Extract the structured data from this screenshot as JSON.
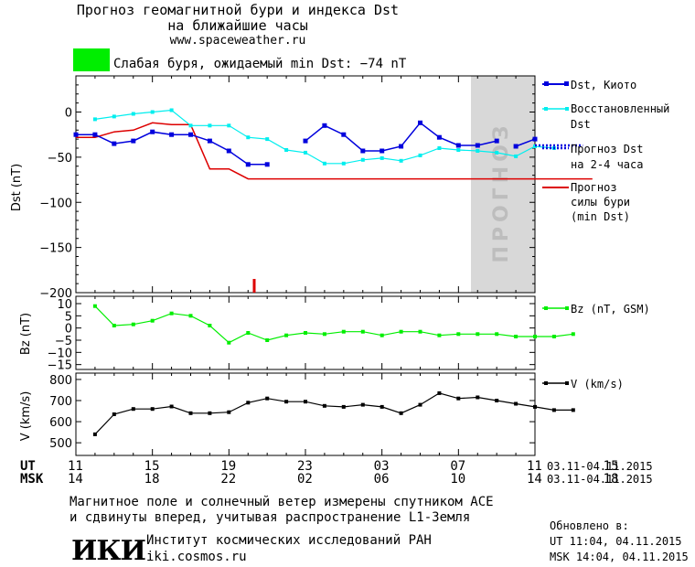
{
  "header": {
    "title_line1": "Прогноз геомагнитной бури и индекса Dst",
    "title_line2": "на ближайшие часы",
    "url": "www.spaceweather.ru",
    "storm_text": "Слабая буря, ожидаемый min Dst: −74 nT",
    "storm_color": "#00ee00"
  },
  "forecast_label": "ПРОГНОЗ",
  "colors": {
    "dst_kyoto": "#0000dd",
    "dst_restored": "#00eeee",
    "forecast": "#0000dd",
    "storm_strength": "#dd0000",
    "bz": "#00ee00",
    "v": "#000000",
    "forecast_zone": "#d8d8d8"
  },
  "legend": {
    "dst_kyoto": "Dst, Киото",
    "dst_restored_1": "Восстановленный",
    "dst_restored_2": "Dst",
    "forecast_1": "Прогноз Dst",
    "forecast_2": "на 2-4 часа",
    "storm_1": "Прогноз",
    "storm_2": "силы бури",
    "storm_3": "(min Dst)",
    "bz": "Bz (nT, GSM)",
    "v": "V (km/s)"
  },
  "time_axis": {
    "ut_label": "UT",
    "msk_label": "MSK",
    "ut_ticks": [
      "11",
      "15",
      "19",
      "23",
      "03",
      "07",
      "11",
      "15"
    ],
    "msk_ticks": [
      "14",
      "18",
      "22",
      "02",
      "06",
      "10",
      "14",
      "18"
    ],
    "range_ut": "03.11-04.11.2015",
    "range_msk": "03.11-04.11.2015"
  },
  "footer": {
    "line1": "Магнитное поле и солнечный ветер измерены спутником ACE",
    "line2": "и сдвинуты вперед, учитывая распространение L1-Земля",
    "updated_label": "Обновлено в:",
    "updated_ut": "UT  11:04, 04.11.2015",
    "updated_msk": "MSK 14:04, 04.11.2015",
    "institute_logo": "ИКИ",
    "institute_name": "Институт космических исследований РАН",
    "institute_url": "iki.cosmos.ru"
  },
  "chart_data": [
    {
      "type": "line",
      "ylabel": "Dst (nT)",
      "ylim": [
        -200,
        40
      ],
      "xlim_hours_ut": [
        11,
        35
      ],
      "forecast_zone_hours_ut": [
        32,
        35
      ],
      "yticks": [
        0,
        -50,
        -100,
        -150,
        -200
      ],
      "series": [
        {
          "name": "Dst, Киото",
          "x": [
            11,
            12,
            13,
            14,
            15,
            16,
            17,
            18,
            19,
            20,
            21
          ],
          "y": [
            -25,
            -25,
            -35,
            -32,
            -22,
            -25,
            -25,
            -32,
            -43,
            -58,
            -58
          ]
        },
        {
          "name": "Dst, Киото",
          "x": [
            23,
            24,
            25,
            26,
            27,
            28,
            29,
            30,
            31,
            32,
            33
          ],
          "y": [
            -32,
            -15,
            -25,
            -43,
            -43,
            -38,
            -12,
            -28,
            -37,
            -37,
            -32
          ]
        },
        {
          "name": "Dst, Киото",
          "x": [
            34,
            35
          ],
          "y": [
            -38,
            -30
          ]
        },
        {
          "name": "Восстановленный Dst",
          "x": [
            12,
            13,
            14,
            15,
            16,
            17,
            18,
            19,
            20,
            21,
            22,
            23,
            24,
            25,
            26,
            27,
            28,
            29,
            30,
            31,
            32,
            33,
            34,
            35,
            36
          ],
          "y": [
            -8,
            -5,
            -2,
            0,
            2,
            -15,
            -15,
            -15,
            -28,
            -30,
            -42,
            -45,
            -57,
            -57,
            -53,
            -51,
            -54,
            -48,
            -40,
            -42,
            -43,
            -45,
            -49,
            -38,
            -40
          ]
        },
        {
          "name": "Прогноз Dst на 2-4 часа",
          "x": [
            35,
            36,
            37.5
          ],
          "y": [
            -37,
            -37,
            -37
          ]
        },
        {
          "name": "Прогноз силы бури (min Dst)",
          "x": [
            11,
            12,
            13,
            14,
            15,
            16,
            17,
            18,
            19,
            20,
            21,
            22,
            23,
            24,
            25,
            26,
            27,
            28,
            29,
            30,
            31,
            32,
            33,
            34,
            35,
            36,
            37,
            38
          ],
          "y": [
            -28,
            -28,
            -22,
            -20,
            -12,
            -14,
            -14,
            -63,
            -63,
            -74,
            -74,
            -74,
            -74,
            -74,
            -74,
            -74,
            -74,
            -74,
            -74,
            -74,
            -74,
            -74,
            -74,
            -74,
            -74,
            -74,
            -74,
            -74
          ]
        }
      ],
      "marker_x": 23
    },
    {
      "type": "line",
      "ylabel": "Bz (nT)",
      "ylim": [
        -17,
        13
      ],
      "yticks": [
        10,
        5,
        0,
        -5,
        -10,
        -15
      ],
      "series": [
        {
          "name": "Bz (nT, GSM)",
          "x": [
            12,
            13,
            14,
            15,
            16,
            17,
            18,
            19,
            20,
            21,
            22,
            23,
            24,
            25,
            26,
            27,
            28,
            29,
            30,
            31,
            32,
            33,
            34,
            35,
            36,
            37
          ],
          "y": [
            9,
            1,
            1.5,
            3,
            6,
            5,
            1,
            -6,
            -2,
            -5,
            -3,
            -2,
            -2.5,
            -1.5,
            -1.5,
            -3,
            -1.5,
            -1.5,
            -3,
            -2.5,
            -2.5,
            -2.5,
            -3.5,
            -3.5,
            -3.5,
            -2.5
          ]
        }
      ]
    },
    {
      "type": "line",
      "ylabel": "V (km/s)",
      "ylim": [
        440,
        830
      ],
      "yticks": [
        800,
        700,
        600,
        500
      ],
      "series": [
        {
          "name": "V (km/s)",
          "x": [
            12,
            13,
            14,
            15,
            16,
            17,
            18,
            19,
            20,
            21,
            22,
            23,
            24,
            25,
            26,
            27,
            28,
            29,
            30,
            31,
            32,
            33,
            34,
            35,
            36,
            37
          ],
          "y": [
            540,
            635,
            660,
            660,
            672,
            640,
            640,
            645,
            690,
            710,
            695,
            695,
            675,
            670,
            680,
            670,
            640,
            680,
            735,
            710,
            715,
            700,
            685,
            670,
            655,
            655
          ]
        }
      ]
    }
  ]
}
